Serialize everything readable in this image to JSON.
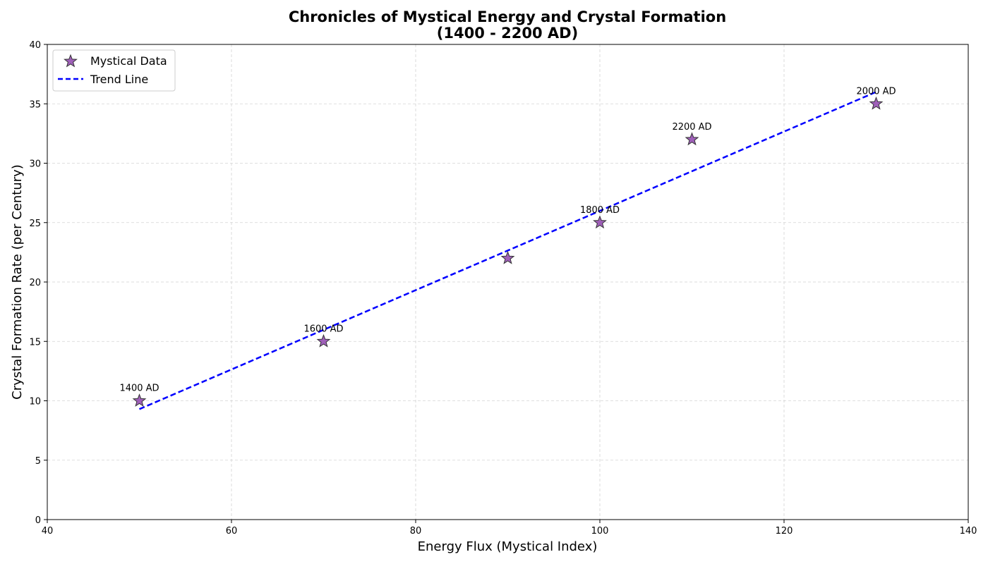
{
  "chart_data": {
    "type": "scatter",
    "title_lines": [
      "Chronicles of Mystical Energy and Crystal Formation",
      "(1400 - 2200 AD)"
    ],
    "xlabel": "Energy Flux (Mystical Index)",
    "ylabel": "Crystal Formation Rate (per Century)",
    "xlim": [
      40,
      140
    ],
    "ylim": [
      0,
      40
    ],
    "xticks": [
      40,
      60,
      80,
      100,
      120,
      140
    ],
    "yticks": [
      0,
      5,
      10,
      15,
      20,
      25,
      30,
      35,
      40
    ],
    "grid": true,
    "legend_position": "upper-left",
    "series": [
      {
        "name": "Mystical Data",
        "kind": "scatter",
        "marker": "star",
        "color": "#8e44ad",
        "edge_color": "#333333",
        "x": [
          50,
          70,
          90,
          100,
          110,
          130
        ],
        "y": [
          10,
          15,
          22,
          25,
          32,
          35
        ],
        "labels": [
          "1400 AD",
          "1600 AD",
          "",
          "1800 AD",
          "2200 AD",
          "2000 AD"
        ]
      },
      {
        "name": "Trend Line",
        "kind": "line",
        "style": "dashed",
        "color": "#0000ff",
        "x": [
          50,
          130
        ],
        "y": [
          9.3,
          36.0
        ]
      }
    ]
  }
}
